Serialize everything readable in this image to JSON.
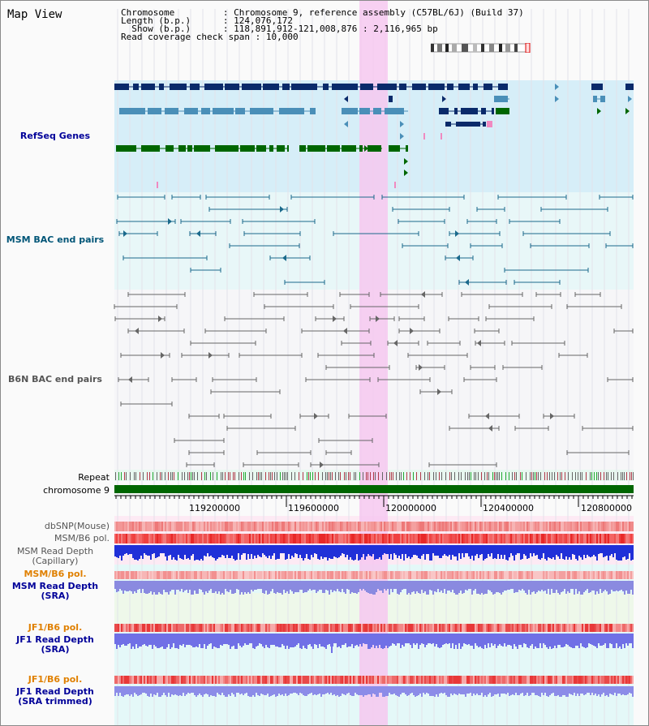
{
  "view": {
    "title": "Map View"
  },
  "info": [
    {
      "key": "Chromosome        ",
      "sep": " : ",
      "val": "Chromosome 9, reference assembly (C57BL/6J) (Build 37)"
    },
    {
      "key": "Length (b.p.)     ",
      "sep": " : ",
      "val": "124,076,172"
    },
    {
      "key": "  Show (b.p.)     ",
      "sep": " : ",
      "val": "118,891,912-121,008,876 : 2,116,965 bp"
    },
    {
      "key": "Read coverage check span",
      "sep": " : ",
      "val": "10,000"
    }
  ],
  "tracks": {
    "refseq": "RefSeq Genes",
    "msm_bac": "MSM BAC end pairs",
    "b6n_bac": "B6N BAC end pairs",
    "repeat": "Repeat",
    "chromosome": "chromosome 9",
    "dbsnp": "dbSNP(Mouse)",
    "msm_b6_pol": "MSM/B6 pol.",
    "msm_depth_cap": "MSM Read Depth",
    "msm_depth_cap_sub": "(Capillary)",
    "msm_b6_pol2": "MSM/B6 pol.",
    "msm_depth_sra": "MSM Read Depth",
    "msm_depth_sra_sub": "(SRA)",
    "jf1_b6_pol": "JF1/B6 pol.",
    "jf1_depth_sra": "JF1 Read Depth",
    "jf1_depth_sra_sub": "(SRA)",
    "jf1_b6_pol2": "JF1/B6 pol.",
    "jf1_depth_trim": "JF1 Read Depth",
    "jf1_depth_trim_sub": "(SRA trimmed)"
  },
  "axis": {
    "ticks": [
      "119200000",
      "119600000",
      "120000000",
      "120400000",
      "120800000"
    ]
  },
  "colors": {
    "refseq_dark": "#0a2a6a",
    "refseq_mid": "#4a8fb8",
    "refseq_green": "#006600",
    "msm_bac": "#1b6a8c",
    "b6n_bac": "#666666",
    "highlight": "#f6c8f0",
    "label_blue": "#000099",
    "label_orange": "#e08000",
    "label_teal": "#005577"
  }
}
